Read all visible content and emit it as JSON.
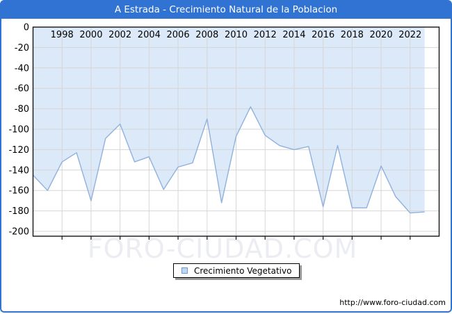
{
  "window": {
    "title_bar": "A Estrada - Crecimiento Natural de la Poblacion"
  },
  "chart_data": {
    "type": "area",
    "title": "A Estrada - Crecimiento Natural de la Poblacion",
    "x": [
      1996,
      1997,
      1998,
      1999,
      2000,
      2001,
      2002,
      2003,
      2004,
      2005,
      2006,
      2007,
      2008,
      2009,
      2010,
      2011,
      2012,
      2013,
      2014,
      2015,
      2016,
      2017,
      2018,
      2019,
      2020,
      2021,
      2022,
      2023
    ],
    "series": [
      {
        "name": "Crecimiento Vegetativo",
        "values": [
          -145,
          -160,
          -132,
          -123,
          -170,
          -109,
          -95,
          -132,
          -127,
          -159,
          -137,
          -133,
          -90,
          -172,
          -107,
          -78,
          -106,
          -116,
          -120,
          -117,
          -176,
          -116,
          -177,
          -177,
          -136,
          -166,
          -182,
          -181
        ]
      }
    ],
    "x_tick_labels": [
      "1998",
      "2000",
      "2002",
      "2004",
      "2006",
      "2008",
      "2010",
      "2012",
      "2014",
      "2016",
      "2018",
      "2020",
      "2022"
    ],
    "y_tick_labels": [
      "0",
      "-20",
      "-40",
      "-60",
      "-80",
      "-100",
      "-120",
      "-140",
      "-160",
      "-180",
      "-200"
    ],
    "xlim": [
      1996,
      2024
    ],
    "ylim": [
      -205,
      0
    ],
    "grid": true,
    "legend_position": "bottom-center",
    "area_fill": "#dbe9f8",
    "line_color": "#8fb1dd"
  },
  "legend": {
    "items": [
      {
        "label": "Crecimiento Vegetativo",
        "swatch_fill": "#bdd7f0",
        "swatch_border": "#6f9bd1"
      }
    ]
  },
  "watermark": {
    "text": "FORO-CIUDAD.COM"
  },
  "footer": {
    "url": "http://www.foro-ciudad.com"
  },
  "colors": {
    "titlebar": "#3173d3",
    "frame_border": "#3173d3",
    "gridline": "#d6d6d6",
    "axis": "#141414",
    "tick_text": "#000000",
    "title_text": "#ffffff"
  }
}
